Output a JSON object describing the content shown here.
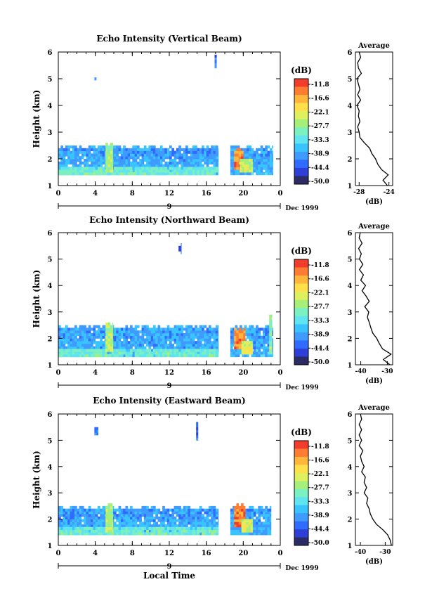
{
  "chart_data": [
    {
      "type": "heatmap",
      "title": "Echo Intensity (Vertical Beam)",
      "ylabel": "Height (km)",
      "ylim": [
        1,
        6
      ],
      "xlim": [
        0,
        24
      ],
      "x_ticks": [
        "0",
        "4",
        "8",
        "12",
        "16",
        "20",
        "0"
      ],
      "y_ticks": [
        "1",
        "2",
        "3",
        "4",
        "5",
        "6"
      ],
      "date_marks": [
        "9"
      ],
      "date_label": "Dec 1999",
      "colorbar": {
        "label": "(dB)",
        "ticks": [
          "-11.8",
          "-16.6",
          "-22.1",
          "-27.7",
          "-33.3",
          "-38.9",
          "-44.4",
          "-50.0"
        ]
      },
      "regions": [
        {
          "x0": 0.0,
          "x1": 17.3,
          "y0": 1.4,
          "y1": 2.5,
          "level": 0.3
        },
        {
          "x0": 0.0,
          "x1": 17.3,
          "y0": 1.4,
          "y1": 1.7,
          "level": 0.48
        },
        {
          "x0": 5.1,
          "x1": 5.9,
          "y0": 1.5,
          "y1": 2.6,
          "level": 0.62
        },
        {
          "x0": 18.6,
          "x1": 23.2,
          "y0": 1.4,
          "y1": 2.5,
          "level": 0.3
        },
        {
          "x0": 19.0,
          "x1": 20.0,
          "y0": 1.6,
          "y1": 2.4,
          "level": 0.92
        },
        {
          "x0": 19.6,
          "x1": 21.0,
          "y0": 1.5,
          "y1": 2.0,
          "level": 0.65
        },
        {
          "x0": 3.9,
          "x1": 4.1,
          "y0": 4.95,
          "y1": 5.05,
          "level": 0.3
        },
        {
          "x0": 16.9,
          "x1": 17.1,
          "y0": 5.4,
          "y1": 5.9,
          "level": 0.16
        }
      ],
      "average_profile": {
        "title": "Average",
        "xlabel": "(dB)",
        "x_ticks": [
          "-28",
          "-24"
        ],
        "xlim": [
          -28.5,
          -23.5
        ],
        "height": [
          1.0,
          1.2,
          1.4,
          1.6,
          1.8,
          2.0,
          2.2,
          2.4,
          2.6,
          2.8,
          3.0,
          3.2,
          3.4,
          3.6,
          3.8,
          4.0,
          4.2,
          4.4,
          4.6,
          4.8,
          5.0,
          5.2,
          5.4,
          5.6,
          5.8,
          6.0
        ],
        "value": [
          -24.2,
          -24.8,
          -24.1,
          -25.0,
          -25.5,
          -25.8,
          -26.3,
          -26.6,
          -27.3,
          -27.9,
          -28.0,
          -28.2,
          -27.9,
          -28.1,
          -28.0,
          -28.3,
          -27.8,
          -28.2,
          -27.9,
          -28.1,
          -28.3,
          -27.7,
          -28.1,
          -28.2,
          -27.8,
          -28.0
        ]
      }
    },
    {
      "type": "heatmap",
      "title": "Echo Intensity (Northward Beam)",
      "ylabel": "Height (km)",
      "ylim": [
        1,
        6
      ],
      "xlim": [
        0,
        24
      ],
      "x_ticks": [
        "0",
        "4",
        "8",
        "12",
        "16",
        "20",
        "0"
      ],
      "y_ticks": [
        "1",
        "2",
        "3",
        "4",
        "5",
        "6"
      ],
      "date_marks": [
        "9"
      ],
      "date_label": "Dec 1999",
      "colorbar": {
        "label": "(dB)",
        "ticks": [
          "-11.8",
          "-16.6",
          "-22.1",
          "-27.7",
          "-33.3",
          "-38.9",
          "-44.4",
          "-50.0"
        ]
      },
      "regions": [
        {
          "x0": 0.0,
          "x1": 17.3,
          "y0": 1.3,
          "y1": 2.5,
          "level": 0.3
        },
        {
          "x0": 0.0,
          "x1": 17.3,
          "y0": 1.3,
          "y1": 1.6,
          "level": 0.48
        },
        {
          "x0": 5.1,
          "x1": 5.9,
          "y0": 1.5,
          "y1": 2.6,
          "level": 0.62
        },
        {
          "x0": 18.6,
          "x1": 23.2,
          "y0": 1.3,
          "y1": 2.5,
          "level": 0.3
        },
        {
          "x0": 19.0,
          "x1": 20.2,
          "y0": 1.6,
          "y1": 2.4,
          "level": 0.92
        },
        {
          "x0": 19.8,
          "x1": 21.0,
          "y0": 1.4,
          "y1": 1.9,
          "level": 0.7
        },
        {
          "x0": 22.8,
          "x1": 23.1,
          "y0": 1.4,
          "y1": 2.9,
          "level": 0.55
        },
        {
          "x0": 13.0,
          "x1": 13.3,
          "y0": 5.2,
          "y1": 5.6,
          "level": 0.16
        }
      ],
      "average_profile": {
        "title": "Average",
        "xlabel": "(dB)",
        "x_ticks": [
          "-40",
          "-30"
        ],
        "xlim": [
          -42,
          -28
        ],
        "height": [
          1.0,
          1.2,
          1.4,
          1.6,
          1.8,
          2.0,
          2.2,
          2.4,
          2.6,
          2.8,
          3.0,
          3.2,
          3.4,
          3.6,
          3.8,
          4.0,
          4.2,
          4.4,
          4.6,
          4.8,
          5.0,
          5.2,
          5.4,
          5.6,
          5.8,
          6.0
        ],
        "value": [
          -29.0,
          -31.5,
          -28.6,
          -31.8,
          -33.0,
          -34.0,
          -35.5,
          -36.2,
          -36.8,
          -37.5,
          -37.0,
          -38.5,
          -36.8,
          -38.0,
          -39.5,
          -38.2,
          -40.0,
          -39.0,
          -40.5,
          -39.2,
          -40.5,
          -39.8,
          -40.8,
          -39.5,
          -40.6,
          -40.2
        ]
      }
    },
    {
      "type": "heatmap",
      "title": "Echo Intensity (Eastward Beam)",
      "ylabel": "Height (km)",
      "xlabel": "Local Time",
      "ylim": [
        1,
        6
      ],
      "xlim": [
        0,
        24
      ],
      "x_ticks": [
        "0",
        "4",
        "8",
        "12",
        "16",
        "20",
        "0"
      ],
      "y_ticks": [
        "1",
        "2",
        "3",
        "4",
        "5",
        "6"
      ],
      "date_marks": [
        "9"
      ],
      "date_label": "Dec 1999",
      "colorbar": {
        "label": "(dB)",
        "ticks": [
          "-11.8",
          "-16.6",
          "-22.1",
          "-27.7",
          "-33.3",
          "-38.9",
          "-44.4",
          "-50.0"
        ]
      },
      "regions": [
        {
          "x0": 0.0,
          "x1": 17.3,
          "y0": 1.4,
          "y1": 2.5,
          "level": 0.3
        },
        {
          "x0": 0.0,
          "x1": 17.3,
          "y0": 1.4,
          "y1": 1.7,
          "level": 0.48
        },
        {
          "x0": 5.1,
          "x1": 5.9,
          "y0": 1.5,
          "y1": 2.6,
          "level": 0.62
        },
        {
          "x0": 18.6,
          "x1": 23.0,
          "y0": 1.4,
          "y1": 2.5,
          "level": 0.3
        },
        {
          "x0": 19.0,
          "x1": 20.2,
          "y0": 1.7,
          "y1": 2.6,
          "level": 0.92
        },
        {
          "x0": 19.8,
          "x1": 21.0,
          "y0": 1.5,
          "y1": 2.0,
          "level": 0.68
        },
        {
          "x0": 3.9,
          "x1": 4.3,
          "y0": 5.2,
          "y1": 5.5,
          "level": 0.2
        },
        {
          "x0": 14.9,
          "x1": 15.1,
          "y0": 5.0,
          "y1": 5.7,
          "level": 0.16
        }
      ],
      "average_profile": {
        "title": "Average",
        "xlabel": "(dB)",
        "x_ticks": [
          "-40",
          "-30"
        ],
        "xlim": [
          -42,
          -27
        ],
        "height": [
          1.0,
          1.2,
          1.4,
          1.6,
          1.8,
          2.0,
          2.2,
          2.4,
          2.6,
          2.8,
          3.0,
          3.2,
          3.4,
          3.6,
          3.8,
          4.0,
          4.2,
          4.4,
          4.6,
          4.8,
          5.0,
          5.2,
          5.4,
          5.6,
          5.8,
          6.0
        ],
        "value": [
          -27.5,
          -28.0,
          -29.0,
          -31.0,
          -33.5,
          -35.0,
          -36.0,
          -36.5,
          -37.5,
          -37.0,
          -38.5,
          -37.5,
          -38.5,
          -38.0,
          -39.5,
          -38.5,
          -39.5,
          -40.0,
          -39.0,
          -40.5,
          -39.5,
          -40.5,
          -39.5,
          -40.5,
          -39.5,
          -40.0
        ]
      }
    }
  ],
  "colormap": [
    "#2b2b66",
    "#2d3fd6",
    "#2f6bff",
    "#3f9bff",
    "#39c4ff",
    "#5fe4f0",
    "#7bf0c0",
    "#a6f07a",
    "#dff05e",
    "#ffe04a",
    "#ffb63b",
    "#ff7d32",
    "#f23c2c"
  ]
}
